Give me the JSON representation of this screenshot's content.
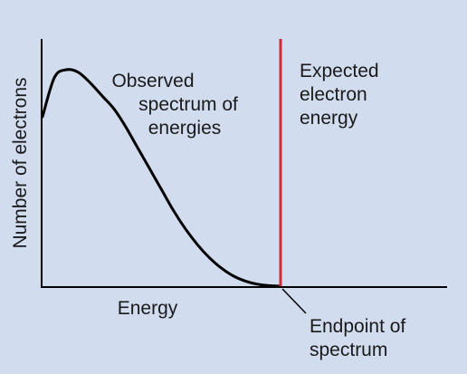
{
  "colors": {
    "background": "#d1dcef",
    "curve": "#000000",
    "axes": "#000000",
    "endpoint_line": "#d62833"
  },
  "labels": {
    "y_axis": "Number of electrons",
    "x_axis": "Energy",
    "observed": [
      "Observed",
      "spectrum of",
      "energies"
    ],
    "expected": [
      "Expected",
      "electron",
      "energy"
    ],
    "endpoint": [
      "Endpoint of",
      "spectrum"
    ]
  },
  "chart_data": {
    "type": "line",
    "xlabel": "Energy",
    "ylabel": "Number of electrons",
    "series": [
      {
        "name": "Observed spectrum of energies",
        "x": [
          0,
          0.05,
          0.1,
          0.15,
          0.2,
          0.25,
          0.3,
          0.35,
          0.4,
          0.45,
          0.5,
          0.55,
          0.6,
          0.65,
          0.7,
          0.75,
          0.8,
          0.85,
          0.9,
          0.95,
          1.0
        ],
        "y": [
          0.65,
          0.8,
          0.83,
          0.82,
          0.78,
          0.73,
          0.68,
          0.61,
          0.53,
          0.45,
          0.37,
          0.29,
          0.22,
          0.16,
          0.11,
          0.07,
          0.04,
          0.02,
          0.008,
          0.002,
          0
        ]
      }
    ],
    "annotations": [
      {
        "text": "Expected electron energy",
        "x": 1.0
      },
      {
        "text": "Endpoint of spectrum",
        "x": 1.0,
        "y": 0
      }
    ]
  }
}
